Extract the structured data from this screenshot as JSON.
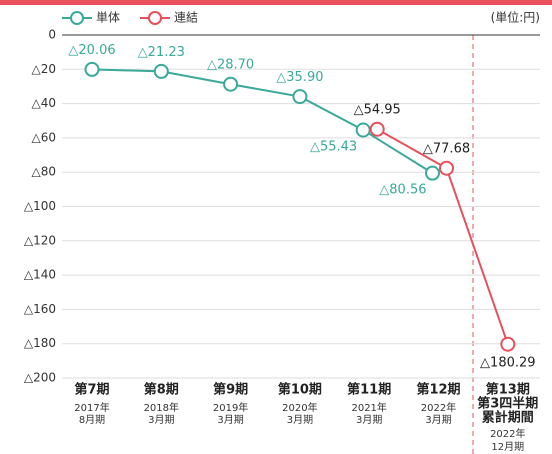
{
  "chart_data": {
    "type": "line",
    "unit_note": "(単位:円)",
    "categories": [
      [
        "第7期",
        "2017年",
        "8月期"
      ],
      [
        "第8期",
        "2018年",
        "3月期"
      ],
      [
        "第9期",
        "2019年",
        "3月期"
      ],
      [
        "第10期",
        "2020年",
        "3月期"
      ],
      [
        "第11期",
        "2021年",
        "3月期"
      ],
      [
        "第12期",
        "2022年",
        "3月期"
      ],
      [
        "第13期",
        "第3四半期",
        "累計期間",
        "2022年",
        "12月期"
      ]
    ],
    "series": [
      {
        "name": "単体",
        "color": "#3aa99a",
        "values": [
          -20.06,
          -21.23,
          -28.7,
          -35.9,
          -55.43,
          -80.56,
          null
        ],
        "value_labels": [
          "△20.06",
          "△21.23",
          "△28.70",
          "△35.90",
          "△55.43",
          "△80.56",
          null
        ]
      },
      {
        "name": "連結",
        "color": "#e8505b",
        "values": [
          null,
          null,
          null,
          null,
          -54.95,
          -77.68,
          -180.29
        ],
        "value_labels": [
          null,
          null,
          null,
          null,
          "△54.95",
          "△77.68",
          "△180.29"
        ]
      }
    ],
    "ylim": [
      -200,
      0
    ],
    "yticks": [
      0,
      {
        "value": -20,
        "label": "△20"
      },
      {
        "value": -40,
        "label": "△40"
      },
      {
        "value": -60,
        "label": "△60"
      },
      {
        "value": -80,
        "label": "△80"
      },
      {
        "value": -100,
        "label": "△100"
      },
      {
        "value": -120,
        "label": "△120"
      },
      {
        "value": -140,
        "label": "△140"
      },
      {
        "value": -160,
        "label": "△160"
      },
      {
        "value": -180,
        "label": "△180"
      },
      {
        "value": -200,
        "label": "△200"
      }
    ],
    "grid": true
  }
}
